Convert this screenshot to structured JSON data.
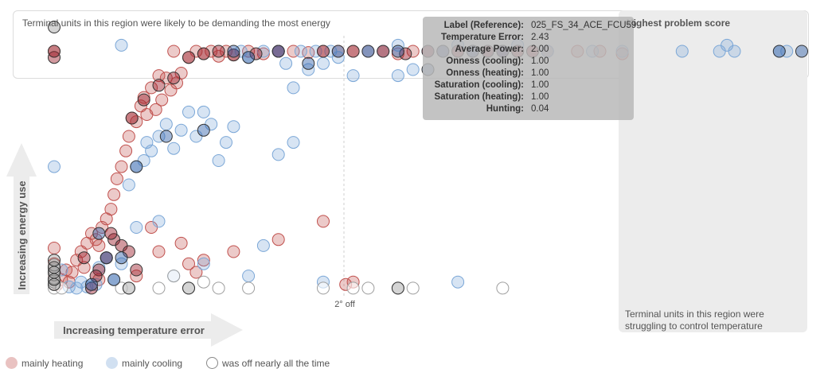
{
  "regions": {
    "top_text": "Terminal units in this region were likely to be demanding the most energy",
    "right_title": "Highest problem score",
    "right_text_line1": "Terminal units in this region were",
    "right_text_line2": "struggling to control temperature"
  },
  "axes": {
    "x_label": "Increasing temperature error",
    "y_label": "Increasing energy use",
    "marker_label": "2° off"
  },
  "tooltip": {
    "rows": [
      {
        "key": "Label (Reference):",
        "value": "025_FS_34_ACE_FCU59"
      },
      {
        "key": "Temperature Error:",
        "value": "2.43"
      },
      {
        "key": "Average Power:",
        "value": "2.00"
      },
      {
        "key": "Onness (cooling):",
        "value": "1.00"
      },
      {
        "key": "Onness (heating):",
        "value": "1.00"
      },
      {
        "key": "Saturation (cooling):",
        "value": "1.00"
      },
      {
        "key": "Saturation (heating):",
        "value": "1.00"
      },
      {
        "key": "Hunting:",
        "value": "0.04"
      }
    ]
  },
  "legend": [
    {
      "label": "mainly heating"
    },
    {
      "label": "mainly cooling"
    },
    {
      "label": "was off nearly all the time"
    }
  ],
  "colors": {
    "heating": "#c0504d",
    "cooling": "#7ba7d7",
    "off": "#bdbdbd",
    "heating_dark": "#9b1c2a",
    "cooling_dark": "#2e5fa8",
    "off_dark": "#555555"
  },
  "chart_data": {
    "type": "scatter",
    "xlabel": "Increasing temperature error",
    "ylabel": "Increasing energy use",
    "xlim": [
      0,
      5
    ],
    "ylim": [
      0,
      2.2
    ],
    "reference_line_x": 2,
    "series": [
      {
        "name": "mainly heating",
        "key": "heating",
        "points": [
          [
            0.0,
            0.15
          ],
          [
            0.0,
            0.25
          ],
          [
            0.0,
            0.38
          ],
          [
            0.0,
            2.0
          ],
          [
            0.02,
            0.08
          ],
          [
            0.05,
            0.12
          ],
          [
            0.08,
            0.2
          ],
          [
            0.1,
            0.1
          ],
          [
            0.12,
            0.18
          ],
          [
            0.15,
            0.28
          ],
          [
            0.18,
            0.35
          ],
          [
            0.2,
            0.22
          ],
          [
            0.22,
            0.42
          ],
          [
            0.25,
            0.5
          ],
          [
            0.28,
            0.45
          ],
          [
            0.3,
            0.4
          ],
          [
            0.32,
            0.55
          ],
          [
            0.35,
            0.62
          ],
          [
            0.38,
            0.7
          ],
          [
            0.4,
            0.82
          ],
          [
            0.42,
            0.95
          ],
          [
            0.45,
            1.05
          ],
          [
            0.48,
            1.18
          ],
          [
            0.5,
            1.3
          ],
          [
            0.52,
            1.45
          ],
          [
            0.55,
            1.42
          ],
          [
            0.58,
            1.55
          ],
          [
            0.6,
            1.62
          ],
          [
            0.62,
            1.48
          ],
          [
            0.65,
            1.7
          ],
          [
            0.68,
            1.52
          ],
          [
            0.7,
            1.8
          ],
          [
            0.72,
            1.6
          ],
          [
            0.75,
            1.78
          ],
          [
            0.78,
            1.68
          ],
          [
            0.8,
            2.0
          ],
          [
            0.82,
            1.74
          ],
          [
            0.85,
            1.82
          ],
          [
            0.9,
            1.95
          ],
          [
            0.95,
            2.0
          ],
          [
            1.0,
            1.98
          ],
          [
            1.05,
            2.0
          ],
          [
            1.1,
            1.96
          ],
          [
            1.15,
            2.0
          ],
          [
            1.2,
            1.97
          ],
          [
            1.3,
            2.0
          ],
          [
            1.4,
            1.98
          ],
          [
            1.5,
            2.0
          ],
          [
            1.6,
            2.0
          ],
          [
            1.7,
            1.99
          ],
          [
            1.8,
            2.0
          ],
          [
            1.9,
            2.0
          ],
          [
            2.0,
            2.0
          ],
          [
            2.1,
            2.0
          ],
          [
            2.2,
            2.0
          ],
          [
            2.3,
            1.98
          ],
          [
            2.4,
            2.0
          ],
          [
            2.5,
            2.0
          ],
          [
            2.6,
            2.0
          ],
          [
            2.7,
            2.0
          ],
          [
            2.8,
            2.0
          ],
          [
            2.9,
            2.0
          ],
          [
            3.0,
            2.0
          ],
          [
            3.1,
            2.0
          ],
          [
            3.2,
            2.0
          ],
          [
            3.3,
            2.0
          ],
          [
            3.5,
            2.0
          ],
          [
            3.65,
            2.0
          ],
          [
            3.8,
            1.98
          ],
          [
            0.55,
            0.15
          ],
          [
            0.7,
            0.35
          ],
          [
            0.85,
            0.42
          ],
          [
            0.95,
            0.18
          ],
          [
            1.0,
            0.28
          ],
          [
            1.2,
            0.35
          ],
          [
            1.5,
            0.45
          ],
          [
            1.8,
            0.6
          ],
          [
            1.95,
            0.08
          ],
          [
            2.0,
            0.1
          ],
          [
            0.65,
            0.55
          ],
          [
            0.9,
            0.25
          ],
          [
            0.3,
            0.12
          ]
        ]
      },
      {
        "name": "mainly cooling",
        "key": "cooling",
        "points": [
          [
            0.0,
            1.05
          ],
          [
            0.05,
            0.2
          ],
          [
            0.1,
            0.06
          ],
          [
            0.15,
            0.05
          ],
          [
            0.18,
            0.1
          ],
          [
            0.22,
            0.06
          ],
          [
            0.28,
            0.08
          ],
          [
            0.3,
            0.22
          ],
          [
            0.35,
            0.3
          ],
          [
            0.4,
            0.12
          ],
          [
            0.45,
            0.25
          ],
          [
            0.5,
            0.9
          ],
          [
            0.55,
            1.05
          ],
          [
            0.6,
            1.1
          ],
          [
            0.62,
            1.25
          ],
          [
            0.65,
            1.18
          ],
          [
            0.7,
            1.3
          ],
          [
            0.75,
            1.4
          ],
          [
            0.8,
            1.2
          ],
          [
            0.85,
            1.35
          ],
          [
            0.9,
            1.5
          ],
          [
            0.95,
            1.3
          ],
          [
            1.0,
            1.5
          ],
          [
            1.05,
            1.4
          ],
          [
            1.1,
            1.1
          ],
          [
            1.15,
            1.25
          ],
          [
            1.2,
            1.38
          ],
          [
            1.25,
            2.0
          ],
          [
            1.3,
            1.95
          ],
          [
            1.4,
            2.0
          ],
          [
            1.5,
            2.0
          ],
          [
            1.55,
            1.9
          ],
          [
            1.6,
            1.7
          ],
          [
            1.65,
            2.0
          ],
          [
            1.7,
            1.85
          ],
          [
            1.75,
            2.0
          ],
          [
            1.8,
            1.9
          ],
          [
            1.85,
            2.0
          ],
          [
            1.9,
            1.95
          ],
          [
            2.0,
            1.8
          ],
          [
            2.1,
            2.0
          ],
          [
            2.2,
            2.0
          ],
          [
            2.3,
            2.05
          ],
          [
            2.4,
            1.85
          ],
          [
            2.5,
            2.0
          ],
          [
            2.6,
            2.0
          ],
          [
            2.7,
            2.05
          ],
          [
            2.8,
            2.0
          ],
          [
            2.9,
            2.0
          ],
          [
            3.0,
            2.0
          ],
          [
            3.1,
            2.05
          ],
          [
            3.3,
            2.0
          ],
          [
            3.6,
            2.0
          ],
          [
            3.8,
            2.0
          ],
          [
            0.45,
            2.05
          ],
          [
            0.55,
            0.55
          ],
          [
            0.7,
            0.6
          ],
          [
            0.8,
            0.15
          ],
          [
            1.0,
            0.25
          ],
          [
            1.3,
            0.15
          ],
          [
            1.4,
            0.4
          ],
          [
            1.8,
            0.1
          ],
          [
            1.5,
            1.15
          ],
          [
            1.6,
            1.25
          ],
          [
            2.3,
            1.8
          ],
          [
            2.7,
            0.1
          ],
          [
            4.2,
            2.0
          ],
          [
            4.45,
            2.0
          ],
          [
            4.5,
            2.05
          ],
          [
            4.55,
            2.0
          ],
          [
            4.85,
            2.0
          ],
          [
            4.9,
            2.0
          ]
        ]
      },
      {
        "name": "was off nearly all the time",
        "key": "off",
        "points": [
          [
            0.0,
            0.05
          ],
          [
            0.0,
            0.08
          ],
          [
            0.0,
            0.1
          ],
          [
            0.0,
            0.13
          ],
          [
            0.0,
            0.16
          ],
          [
            0.0,
            0.2
          ],
          [
            0.0,
            0.24
          ],
          [
            0.05,
            0.05
          ],
          [
            0.45,
            0.05
          ],
          [
            0.5,
            0.05
          ],
          [
            0.7,
            0.05
          ],
          [
            0.8,
            0.15
          ],
          [
            0.9,
            0.05
          ],
          [
            1.0,
            0.1
          ],
          [
            1.1,
            0.05
          ],
          [
            1.3,
            0.05
          ],
          [
            1.8,
            0.05
          ],
          [
            2.0,
            0.05
          ],
          [
            2.1,
            0.05
          ],
          [
            2.3,
            0.05
          ],
          [
            2.4,
            0.05
          ],
          [
            3.0,
            0.05
          ]
        ]
      }
    ],
    "highlighted": [
      {
        "key": "heating_dark",
        "points": [
          [
            0.0,
            1.95
          ],
          [
            0.0,
            2.0
          ],
          [
            0.52,
            1.45
          ],
          [
            0.6,
            1.6
          ],
          [
            0.7,
            1.72
          ],
          [
            0.8,
            1.78
          ],
          [
            0.9,
            1.95
          ],
          [
            1.0,
            1.98
          ],
          [
            1.1,
            2.0
          ],
          [
            1.2,
            1.97
          ],
          [
            1.35,
            1.98
          ],
          [
            1.5,
            2.0
          ],
          [
            1.8,
            2.0
          ],
          [
            2.0,
            2.0
          ],
          [
            2.2,
            2.0
          ],
          [
            2.35,
            1.98
          ],
          [
            2.5,
            2.0
          ],
          [
            2.7,
            2.0
          ],
          [
            2.9,
            2.0
          ],
          [
            3.0,
            2.0
          ],
          [
            3.1,
            2.0
          ],
          [
            3.2,
            2.0
          ],
          [
            0.4,
            0.45
          ],
          [
            0.35,
            0.3
          ],
          [
            0.3,
            0.2
          ],
          [
            0.25,
            0.05
          ],
          [
            0.45,
            0.4
          ],
          [
            0.38,
            0.5
          ],
          [
            0.5,
            0.35
          ],
          [
            0.55,
            0.2
          ],
          [
            0.28,
            0.15
          ],
          [
            0.2,
            0.3
          ]
        ]
      },
      {
        "key": "cooling_dark",
        "points": [
          [
            0.55,
            1.05
          ],
          [
            0.75,
            1.3
          ],
          [
            1.0,
            1.35
          ],
          [
            1.2,
            2.0
          ],
          [
            1.3,
            1.95
          ],
          [
            1.5,
            2.0
          ],
          [
            1.7,
            1.9
          ],
          [
            1.9,
            2.0
          ],
          [
            2.1,
            2.0
          ],
          [
            2.3,
            2.0
          ],
          [
            2.5,
            1.85
          ],
          [
            2.6,
            2.0
          ],
          [
            2.8,
            2.0
          ],
          [
            3.0,
            2.0
          ],
          [
            4.85,
            2.0
          ],
          [
            5.0,
            2.0
          ],
          [
            0.35,
            0.3
          ],
          [
            0.4,
            0.12
          ],
          [
            0.25,
            0.08
          ],
          [
            0.3,
            0.5
          ],
          [
            0.45,
            0.3
          ]
        ]
      },
      {
        "key": "off_dark",
        "points": [
          [
            0.0,
            2.2
          ],
          [
            0.0,
            0.08
          ],
          [
            0.0,
            0.12
          ],
          [
            0.0,
            0.18
          ],
          [
            0.0,
            0.22
          ],
          [
            0.0,
            0.28
          ],
          [
            0.5,
            0.05
          ],
          [
            0.9,
            0.05
          ],
          [
            2.3,
            0.05
          ]
        ]
      }
    ],
    "tooltip_point_label": "025_FS_34_ACE_FCU59"
  }
}
